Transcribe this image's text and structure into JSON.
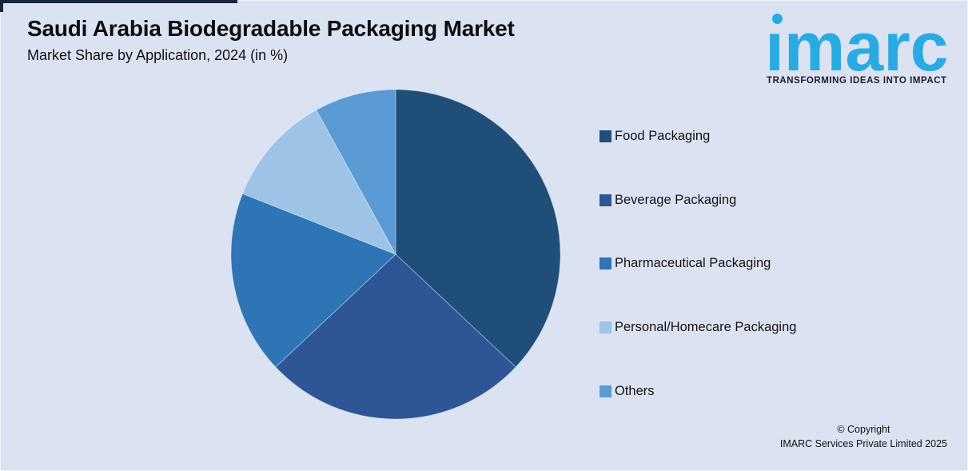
{
  "header": {
    "title": "Saudi Arabia Biodegradable Packaging Market",
    "subtitle": "Market Share by Application, 2024 (in %)"
  },
  "logo": {
    "wordmark": "imarc",
    "tagline": "TRANSFORMING IDEAS INTO IMPACT",
    "brand_color": "#29ABE2",
    "tagline_color": "#1E1E2E"
  },
  "chart_data": {
    "type": "pie",
    "title": "Saudi Arabia Biodegradable Packaging Market",
    "subtitle": "Market Share by Application, 2024 (in %)",
    "unit": "%",
    "categories": [
      "Food Packaging",
      "Beverage Packaging",
      "Pharmaceutical Packaging",
      "Personal/Homecare Packaging",
      "Others"
    ],
    "values": [
      37,
      26,
      18,
      11,
      8
    ],
    "colors": [
      "#1F4E79",
      "#2E5596",
      "#2E75B6",
      "#9DC3E6",
      "#5B9BD5"
    ],
    "start_angle_deg": 0,
    "direction": "clockwise",
    "legend_position": "right",
    "data_labels_shown": false
  },
  "footer": {
    "copyright_line1": "© Copyright",
    "copyright_line2": "IMARC Services Private Limited 2025"
  },
  "theme": {
    "background": "#DBE2F1",
    "corner_accent": "#17243F",
    "text_color": "#111111"
  }
}
